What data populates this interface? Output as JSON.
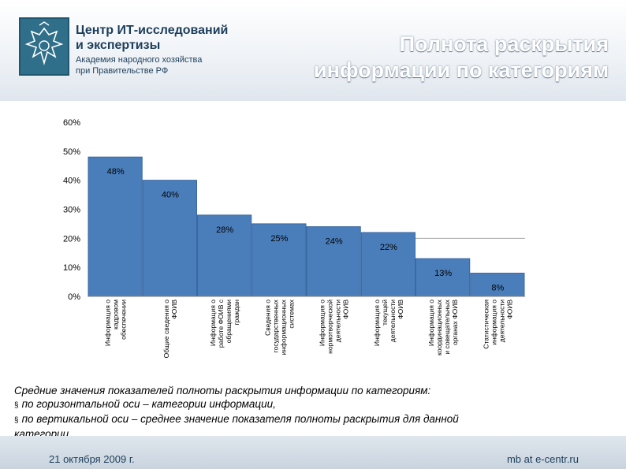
{
  "logo": {
    "line1": "Центр ИТ-исследований",
    "line2": "и экспертизы",
    "line3": "Академия народного хозяйства",
    "line4": "при Правительстве РФ"
  },
  "title": {
    "line1": "Полнота раскрытия",
    "line2": "информации по категориям"
  },
  "chart_data": {
    "type": "bar",
    "categories": [
      [
        "Информация о",
        "кадровом",
        "обеспечении"
      ],
      [
        "Общие сведения о",
        "ФОИВ"
      ],
      [
        "Информация о",
        "работе ФОИВ с",
        "обращениями",
        "граждан"
      ],
      [
        "Сведения о",
        "государственных",
        "информационных",
        "системах"
      ],
      [
        "Информация о",
        "нормотворческой",
        "деятельности",
        "ФОИВ"
      ],
      [
        "Информация о",
        "текущей",
        "деятельности",
        "ФОИВ"
      ],
      [
        "Информация о",
        "координационных",
        "и совещательных",
        "органах ФОИВ"
      ],
      [
        "Статистическая",
        "информация о",
        "деятельности",
        "ФОИВ"
      ]
    ],
    "values": [
      48,
      40,
      28,
      25,
      24,
      22,
      13,
      8
    ],
    "value_labels": [
      "48%",
      "40%",
      "28%",
      "25%",
      "24%",
      "22%",
      "13%",
      "8%"
    ],
    "yticks": [
      "0%",
      "10%",
      "20%",
      "30%",
      "40%",
      "50%",
      "60%"
    ],
    "ylim": [
      0,
      60
    ],
    "reference_line": 20,
    "bar_color": "#4a7ebb",
    "bar_edge": "#3a68a0"
  },
  "caption": {
    "line1": "Средние значения показателей полноты раскрытия информации по категориям:",
    "bullet1": "по горизонтальной оси – категории информации,",
    "bullet2a": "по вертикальной оси – среднее значение показателя полноты раскрытия для данной",
    "bullet2b": "категории.",
    "bullet_symbol": "§"
  },
  "footer": {
    "date": "21 октября 2009 г.",
    "site": "mb at e-centr.ru"
  }
}
